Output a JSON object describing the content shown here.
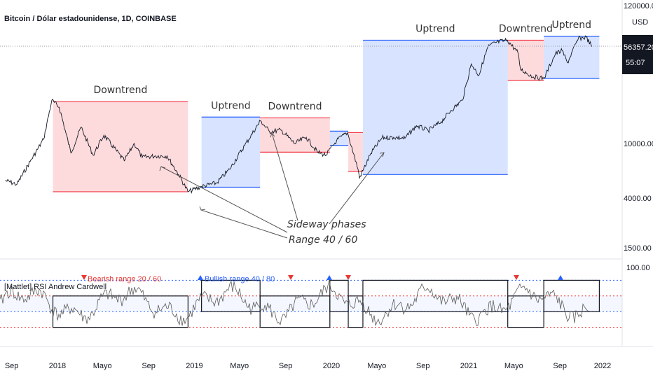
{
  "chart_data": [
    {
      "type": "line",
      "title": "Bitcoin / Dólar estadounidense, 1D, COINBASE",
      "y_unit_label": "USD",
      "y_scale": "log",
      "ylim": [
        1000,
        120000
      ],
      "y_ticks": [
        "120000.00",
        "10000.00",
        "4000.00",
        "1500.00"
      ],
      "last_price_label": "56357.20",
      "countdown_label": "55:07",
      "x_ticks": [
        "Sep",
        "2018",
        "Mayo",
        "Sep",
        "2019",
        "Mayo",
        "Sep",
        "2020",
        "Mayo",
        "Sep",
        "2021",
        "Mayo",
        "Sep",
        "2022"
      ],
      "series": [
        {
          "values": [
            [
              "2017-08-15",
              4000
            ],
            [
              "2017-09-15",
              3700
            ],
            [
              "2017-10-20",
              5800
            ],
            [
              "2017-11-25",
              9000
            ],
            [
              "2017-12-17",
              19500
            ],
            [
              "2018-01-06",
              17000
            ],
            [
              "2018-02-06",
              6900
            ],
            [
              "2018-03-05",
              11500
            ],
            [
              "2018-04-06",
              6600
            ],
            [
              "2018-05-05",
              9800
            ],
            [
              "2018-06-28",
              5900
            ],
            [
              "2018-07-25",
              8300
            ],
            [
              "2018-08-15",
              6300
            ],
            [
              "2018-09-20",
              6500
            ],
            [
              "2018-10-20",
              6500
            ],
            [
              "2018-11-20",
              4500
            ],
            [
              "2018-12-15",
              3200
            ],
            [
              "2019-01-20",
              3550
            ],
            [
              "2019-03-01",
              3800
            ],
            [
              "2019-04-05",
              5000
            ],
            [
              "2019-05-15",
              8000
            ],
            [
              "2019-06-26",
              13000
            ],
            [
              "2019-07-20",
              10500
            ],
            [
              "2019-08-20",
              10800
            ],
            [
              "2019-09-25",
              8300
            ],
            [
              "2019-10-26",
              9400
            ],
            [
              "2019-11-25",
              7000
            ],
            [
              "2019-12-18",
              6600
            ],
            [
              "2020-01-15",
              8800
            ],
            [
              "2020-02-13",
              10300
            ],
            [
              "2020-03-12",
              5000
            ],
            [
              "2020-03-16",
              4200
            ],
            [
              "2020-04-15",
              6800
            ],
            [
              "2020-05-15",
              9300
            ],
            [
              "2020-06-15",
              9400
            ],
            [
              "2020-07-15",
              9200
            ],
            [
              "2020-08-15",
              11800
            ],
            [
              "2020-09-15",
              10700
            ],
            [
              "2020-10-20",
              12800
            ],
            [
              "2020-11-15",
              16000
            ],
            [
              "2020-12-15",
              19500
            ],
            [
              "2021-01-08",
              40000
            ],
            [
              "2021-01-28",
              32000
            ],
            [
              "2021-02-21",
              56000
            ],
            [
              "2021-03-13",
              61000
            ],
            [
              "2021-04-14",
              64000
            ],
            [
              "2021-05-12",
              50000
            ],
            [
              "2021-05-19",
              36000
            ],
            [
              "2021-06-22",
              31000
            ],
            [
              "2021-07-20",
              30000
            ],
            [
              "2021-08-20",
              49000
            ],
            [
              "2021-09-07",
              52000
            ],
            [
              "2021-09-21",
              41000
            ],
            [
              "2021-10-20",
              66000
            ],
            [
              "2021-11-10",
              68000
            ],
            [
              "2021-11-25",
              56357
            ]
          ]
        }
      ],
      "zones": [
        {
          "label": "Downtrend",
          "x": [
            "2017-12-20",
            "2018-12-15"
          ],
          "y": [
            3200,
            19000
          ],
          "kind": "bearish"
        },
        {
          "label": "Uptrend",
          "x": [
            "2019-01-20",
            "2019-06-25"
          ],
          "y": [
            3500,
            14000
          ],
          "kind": "bullish"
        },
        {
          "label": "Downtrend",
          "x": [
            "2019-06-25",
            "2019-12-28"
          ],
          "y": [
            7000,
            13800
          ],
          "kind": "bearish"
        },
        {
          "label": "",
          "x": [
            "2019-12-28",
            "2020-02-15"
          ],
          "y": [
            8000,
            10600
          ],
          "kind": "bullish"
        },
        {
          "label": "",
          "x": [
            "2020-02-15",
            "2020-03-25"
          ],
          "y": [
            4800,
            10300
          ],
          "kind": "bearish"
        },
        {
          "label": "Uptrend",
          "x": [
            "2020-03-25",
            "2021-04-15"
          ],
          "y": [
            4500,
            64000
          ],
          "kind": "bullish"
        },
        {
          "label": "Downtrend",
          "x": [
            "2021-04-15",
            "2021-07-20"
          ],
          "y": [
            29000,
            64000
          ],
          "kind": "bearish"
        },
        {
          "label": "Uptrend",
          "x": [
            "2021-07-20",
            "2021-12-15"
          ],
          "y": [
            30000,
            69000
          ],
          "kind": "bullish"
        }
      ],
      "annotations": [
        "Sideway phases",
        "Range 40 / 60"
      ]
    },
    {
      "type": "line",
      "title": "[Mattlet] RSI Andrew Cardwell",
      "ylim": [
        0,
        100
      ],
      "y_ticks": [
        "100.00"
      ],
      "levels": [
        80,
        60,
        40,
        20
      ],
      "bearish_range_label": "Bearish range 20 / 60",
      "bullish_range_label": "Bullish range 40 / 80"
    }
  ]
}
